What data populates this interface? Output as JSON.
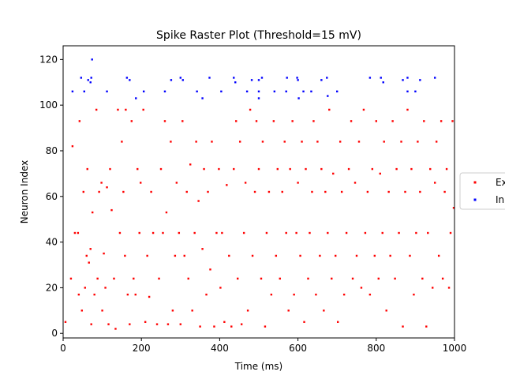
{
  "chart_data": {
    "type": "scatter",
    "title": "Spike Raster Plot (Threshold=15 mV)",
    "xlabel": "Time (ms)",
    "ylabel": "Neuron Index",
    "xlim": [
      0,
      1000
    ],
    "ylim": [
      -2,
      126
    ],
    "xticks": [
      0,
      200,
      400,
      600,
      800,
      1000
    ],
    "yticks": [
      0,
      20,
      40,
      60,
      80,
      100,
      120
    ],
    "grid": false,
    "legend_position": "right (clipped)",
    "series": [
      {
        "name": "Ex",
        "color": "#ff0000",
        "points": [
          [
            6,
            5
          ],
          [
            20,
            24
          ],
          [
            24,
            82
          ],
          [
            30,
            44
          ],
          [
            38,
            44
          ],
          [
            40,
            17
          ],
          [
            42,
            93
          ],
          [
            48,
            10
          ],
          [
            52,
            62
          ],
          [
            56,
            20
          ],
          [
            60,
            34
          ],
          [
            62,
            72
          ],
          [
            66,
            31
          ],
          [
            70,
            37
          ],
          [
            72,
            4
          ],
          [
            75,
            53
          ],
          [
            80,
            17
          ],
          [
            85,
            98
          ],
          [
            88,
            24
          ],
          [
            92,
            62
          ],
          [
            98,
            66
          ],
          [
            100,
            10
          ],
          [
            104,
            35
          ],
          [
            108,
            20
          ],
          [
            112,
            64
          ],
          [
            116,
            4
          ],
          [
            120,
            72
          ],
          [
            124,
            54
          ],
          [
            130,
            24
          ],
          [
            134,
            2
          ],
          [
            140,
            98
          ],
          [
            145,
            44
          ],
          [
            150,
            84
          ],
          [
            154,
            62
          ],
          [
            158,
            34
          ],
          [
            160,
            98
          ],
          [
            165,
            17
          ],
          [
            170,
            4
          ],
          [
            175,
            93
          ],
          [
            180,
            24
          ],
          [
            185,
            17
          ],
          [
            190,
            72
          ],
          [
            195,
            44
          ],
          [
            198,
            66
          ],
          [
            205,
            98
          ],
          [
            210,
            5
          ],
          [
            215,
            34
          ],
          [
            220,
            16
          ],
          [
            225,
            62
          ],
          [
            230,
            44
          ],
          [
            240,
            4
          ],
          [
            245,
            24
          ],
          [
            250,
            72
          ],
          [
            255,
            44
          ],
          [
            260,
            93
          ],
          [
            264,
            53
          ],
          [
            268,
            4
          ],
          [
            275,
            84
          ],
          [
            280,
            10
          ],
          [
            286,
            34
          ],
          [
            290,
            66
          ],
          [
            296,
            44
          ],
          [
            300,
            4
          ],
          [
            305,
            93
          ],
          [
            310,
            34
          ],
          [
            316,
            62
          ],
          [
            320,
            24
          ],
          [
            325,
            74
          ],
          [
            330,
            10
          ],
          [
            336,
            44
          ],
          [
            340,
            84
          ],
          [
            346,
            58
          ],
          [
            350,
            3
          ],
          [
            356,
            37
          ],
          [
            360,
            72
          ],
          [
            366,
            17
          ],
          [
            370,
            62
          ],
          [
            376,
            28
          ],
          [
            380,
            84
          ],
          [
            386,
            3
          ],
          [
            392,
            44
          ],
          [
            398,
            72
          ],
          [
            402,
            20
          ],
          [
            406,
            44
          ],
          [
            412,
            5
          ],
          [
            418,
            65
          ],
          [
            424,
            34
          ],
          [
            430,
            3
          ],
          [
            436,
            72
          ],
          [
            442,
            93
          ],
          [
            446,
            24
          ],
          [
            452,
            84
          ],
          [
            456,
            4
          ],
          [
            462,
            44
          ],
          [
            466,
            66
          ],
          [
            472,
            10
          ],
          [
            478,
            98
          ],
          [
            484,
            34
          ],
          [
            490,
            62
          ],
          [
            494,
            93
          ],
          [
            500,
            72
          ],
          [
            506,
            24
          ],
          [
            510,
            84
          ],
          [
            516,
            3
          ],
          [
            520,
            44
          ],
          [
            526,
            62
          ],
          [
            532,
            17
          ],
          [
            538,
            93
          ],
          [
            544,
            34
          ],
          [
            548,
            72
          ],
          [
            554,
            24
          ],
          [
            560,
            62
          ],
          [
            566,
            84
          ],
          [
            570,
            44
          ],
          [
            576,
            10
          ],
          [
            580,
            72
          ],
          [
            586,
            93
          ],
          [
            590,
            17
          ],
          [
            596,
            44
          ],
          [
            600,
            66
          ],
          [
            606,
            34
          ],
          [
            610,
            84
          ],
          [
            616,
            5
          ],
          [
            620,
            72
          ],
          [
            626,
            24
          ],
          [
            630,
            44
          ],
          [
            636,
            62
          ],
          [
            640,
            93
          ],
          [
            646,
            17
          ],
          [
            650,
            84
          ],
          [
            656,
            34
          ],
          [
            660,
            72
          ],
          [
            666,
            10
          ],
          [
            670,
            62
          ],
          [
            676,
            44
          ],
          [
            680,
            98
          ],
          [
            686,
            24
          ],
          [
            690,
            70
          ],
          [
            696,
            34
          ],
          [
            702,
            5
          ],
          [
            708,
            84
          ],
          [
            712,
            62
          ],
          [
            718,
            17
          ],
          [
            724,
            44
          ],
          [
            730,
            72
          ],
          [
            736,
            93
          ],
          [
            740,
            24
          ],
          [
            746,
            66
          ],
          [
            750,
            34
          ],
          [
            756,
            84
          ],
          [
            762,
            20
          ],
          [
            768,
            98
          ],
          [
            772,
            44
          ],
          [
            778,
            62
          ],
          [
            784,
            17
          ],
          [
            790,
            72
          ],
          [
            796,
            34
          ],
          [
            800,
            93
          ],
          [
            806,
            24
          ],
          [
            810,
            70
          ],
          [
            816,
            44
          ],
          [
            820,
            84
          ],
          [
            826,
            10
          ],
          [
            832,
            62
          ],
          [
            836,
            34
          ],
          [
            842,
            93
          ],
          [
            848,
            24
          ],
          [
            852,
            72
          ],
          [
            858,
            44
          ],
          [
            864,
            84
          ],
          [
            868,
            3
          ],
          [
            874,
            62
          ],
          [
            880,
            98
          ],
          [
            886,
            34
          ],
          [
            890,
            72
          ],
          [
            896,
            17
          ],
          [
            902,
            44
          ],
          [
            906,
            84
          ],
          [
            912,
            62
          ],
          [
            918,
            24
          ],
          [
            922,
            93
          ],
          [
            928,
            3
          ],
          [
            932,
            44
          ],
          [
            938,
            72
          ],
          [
            944,
            20
          ],
          [
            950,
            66
          ],
          [
            954,
            84
          ],
          [
            960,
            34
          ],
          [
            966,
            93
          ],
          [
            970,
            24
          ],
          [
            975,
            62
          ],
          [
            980,
            72
          ],
          [
            986,
            20
          ],
          [
            990,
            44
          ],
          [
            995,
            93
          ],
          [
            998,
            55
          ]
        ]
      },
      {
        "name": "In",
        "color": "#0000ff",
        "points": [
          [
            24,
            106
          ],
          [
            46,
            112
          ],
          [
            54,
            106
          ],
          [
            64,
            111
          ],
          [
            70,
            110
          ],
          [
            72,
            112
          ],
          [
            74,
            120
          ],
          [
            112,
            106
          ],
          [
            163,
            112
          ],
          [
            170,
            111
          ],
          [
            186,
            103
          ],
          [
            206,
            106
          ],
          [
            260,
            106
          ],
          [
            276,
            111
          ],
          [
            300,
            112
          ],
          [
            306,
            111
          ],
          [
            342,
            106
          ],
          [
            356,
            103
          ],
          [
            374,
            112
          ],
          [
            404,
            106
          ],
          [
            436,
            112
          ],
          [
            440,
            110
          ],
          [
            470,
            106
          ],
          [
            482,
            111
          ],
          [
            500,
            103
          ],
          [
            500,
            106
          ],
          [
            500,
            111
          ],
          [
            508,
            112
          ],
          [
            540,
            106
          ],
          [
            570,
            106
          ],
          [
            572,
            112
          ],
          [
            598,
            112
          ],
          [
            600,
            111
          ],
          [
            602,
            103
          ],
          [
            614,
            106
          ],
          [
            634,
            106
          ],
          [
            660,
            111
          ],
          [
            674,
            112
          ],
          [
            676,
            104
          ],
          [
            700,
            106
          ],
          [
            784,
            112
          ],
          [
            812,
            112
          ],
          [
            818,
            110
          ],
          [
            868,
            111
          ],
          [
            880,
            112
          ],
          [
            880,
            106
          ],
          [
            900,
            106
          ],
          [
            912,
            111
          ],
          [
            950,
            112
          ]
        ]
      }
    ]
  }
}
